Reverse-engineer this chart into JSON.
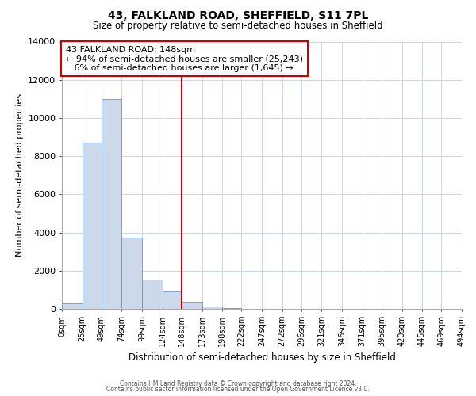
{
  "title": "43, FALKLAND ROAD, SHEFFIELD, S11 7PL",
  "subtitle": "Size of property relative to semi-detached houses in Sheffield",
  "xlabel": "Distribution of semi-detached houses by size in Sheffield",
  "ylabel": "Number of semi-detached properties",
  "bin_labels": [
    "0sqm",
    "25sqm",
    "49sqm",
    "74sqm",
    "99sqm",
    "124sqm",
    "148sqm",
    "173sqm",
    "198sqm",
    "222sqm",
    "247sqm",
    "272sqm",
    "296sqm",
    "321sqm",
    "346sqm",
    "371sqm",
    "395sqm",
    "420sqm",
    "445sqm",
    "469sqm",
    "494sqm"
  ],
  "bin_edges": [
    0,
    25,
    49,
    74,
    99,
    124,
    148,
    173,
    198,
    222,
    247,
    272,
    296,
    321,
    346,
    371,
    395,
    420,
    445,
    469,
    494
  ],
  "bar_heights": [
    300,
    8700,
    11000,
    3750,
    1550,
    900,
    380,
    130,
    60,
    10,
    0,
    0,
    0,
    0,
    0,
    0,
    0,
    0,
    0,
    0
  ],
  "bar_color": "#ccd9ea",
  "bar_edge_color": "#6699cc",
  "marker_value": 148,
  "marker_color": "#cc0000",
  "annotation_line1": "43 FALKLAND ROAD: 148sqm",
  "annotation_line2": "← 94% of semi-detached houses are smaller (25,243)",
  "annotation_line3": "   6% of semi-detached houses are larger (1,645) →",
  "annotation_box_color": "#cc0000",
  "ylim": [
    0,
    14000
  ],
  "yticks": [
    0,
    2000,
    4000,
    6000,
    8000,
    10000,
    12000,
    14000
  ],
  "footer_line1": "Contains HM Land Registry data © Crown copyright and database right 2024.",
  "footer_line2": "Contains public sector information licensed under the Open Government Licence v3.0.",
  "background_color": "#ffffff",
  "grid_color": "#c8d8e8"
}
